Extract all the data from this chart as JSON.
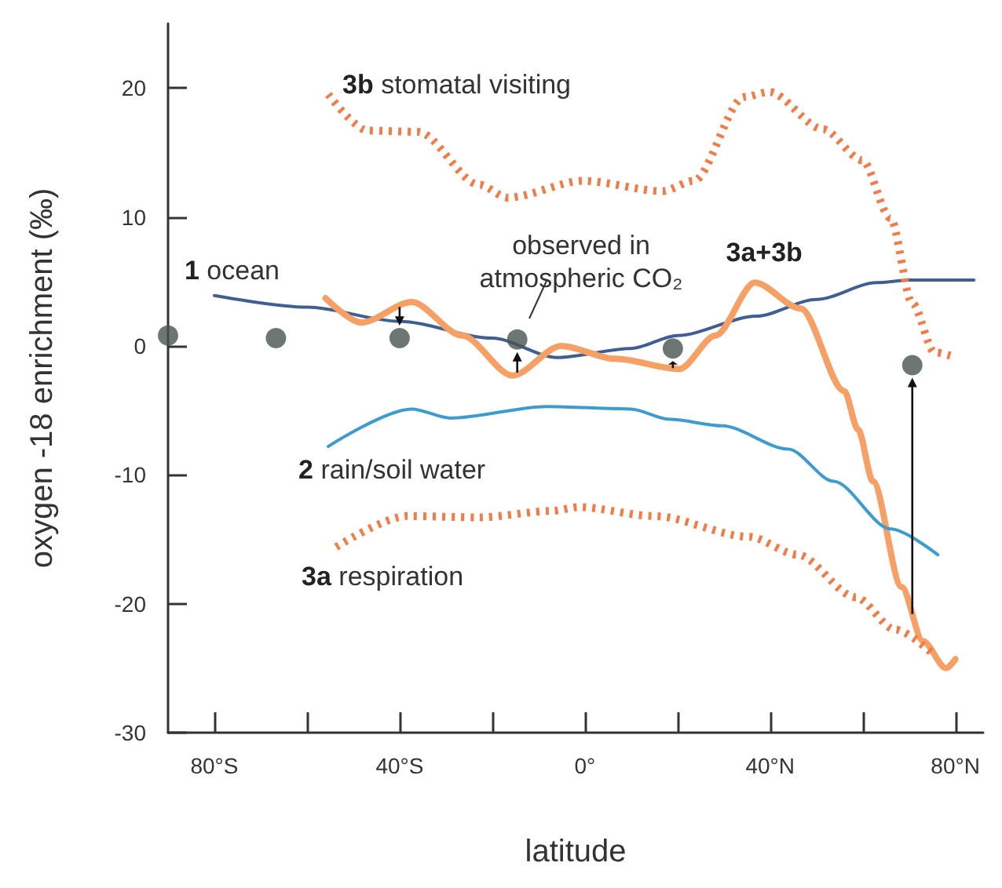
{
  "chart_data": {
    "type": "line",
    "xlabel": "latitude",
    "ylabel": "oxygen -18 enrichment (‰)",
    "xlim": [
      -90,
      86
    ],
    "ylim": [
      -30,
      25
    ],
    "xticks": [
      {
        "value": -80,
        "label": "80°S"
      },
      {
        "value": -60,
        "label": null
      },
      {
        "value": -40,
        "label": "40°S"
      },
      {
        "value": -20,
        "label": null
      },
      {
        "value": 0,
        "label": "0°"
      },
      {
        "value": 20,
        "label": null
      },
      {
        "value": 40,
        "label": "40°N"
      },
      {
        "value": 60,
        "label": null
      },
      {
        "value": 80,
        "label": "80°N"
      }
    ],
    "yticks": [
      -30,
      -20,
      -10,
      0,
      10,
      20
    ],
    "grid": false,
    "legend": false,
    "series": [
      {
        "name": "1 ocean",
        "color": "#3f5f93",
        "line_style": "solid",
        "marker": "none",
        "x": [
          -80,
          -60,
          -40,
          -20,
          -6,
          10,
          20,
          37,
          50,
          63,
          70,
          84
        ],
        "values": [
          3.9,
          3.0,
          1.9,
          0.6,
          -0.9,
          -0.2,
          0.8,
          2.3,
          3.6,
          4.9,
          5.1,
          5.1
        ]
      },
      {
        "name": "3a+3b",
        "color": "#f6a066",
        "line_style": "solid",
        "marker": "none",
        "x": [
          -56,
          -48.3,
          -37.4,
          -26.5,
          -15.6,
          -5.1,
          6.5,
          20.4,
          28.2,
          36.7,
          46.6,
          56,
          59,
          62.2,
          68.4,
          73,
          78,
          80
        ],
        "values": [
          3.7,
          1.8,
          3.4,
          0.8,
          -2.3,
          0,
          -1.0,
          -1.8,
          0.8,
          4.9,
          2.9,
          -3.5,
          -6.5,
          -10.5,
          -18.7,
          -22.9,
          -25,
          -24.3
        ]
      },
      {
        "name": "2 rain/soil water",
        "color": "#3d9bd1",
        "line_style": "solid",
        "marker": "none",
        "x": [
          -55.4,
          -37.4,
          -29,
          -8.2,
          9.9,
          18.4,
          29.6,
          43.9,
          53.7,
          66,
          76.2
        ],
        "values": [
          -7.8,
          -4.9,
          -5.6,
          -4.7,
          -4.9,
          -5.7,
          -6.2,
          -8.0,
          -10.5,
          -14.2,
          -16.2
        ]
      },
      {
        "name": "3a respiration",
        "color": "#f27c48",
        "line_style": "dotted",
        "marker": "none",
        "x": [
          -53.7,
          -38.4,
          -22.8,
          -7.1,
          -1.4,
          15,
          35.4,
          45.9,
          58.5,
          67,
          75.5
        ],
        "values": [
          -15.6,
          -13.2,
          -13.3,
          -12.8,
          -12.5,
          -13.2,
          -14.8,
          -16.2,
          -19.5,
          -22,
          -24
        ]
      },
      {
        "name": "3b stomatal visiting",
        "color": "#f27c48",
        "line_style": "dotted",
        "marker": "none",
        "x": [
          -55.4,
          -46.9,
          -36,
          -22.8,
          -16.7,
          -0.3,
          16.7,
          23.5,
          34.4,
          39.8,
          51.4,
          59.9,
          66,
          70.7,
          75.5,
          79.3
        ],
        "values": [
          19.5,
          16.7,
          16.6,
          12.5,
          11.5,
          12.8,
          12.0,
          12.8,
          19.3,
          19.7,
          16.8,
          14.4,
          9.9,
          3.3,
          -0.5,
          -0.8
        ]
      },
      {
        "type": "scatter",
        "color": "#4a5450",
        "marker": "circle",
        "x": [
          -90,
          -66.7,
          -40,
          -14.6,
          19,
          70.7
        ],
        "values": [
          0.8,
          0.6,
          0.6,
          0.5,
          -0.2,
          -1.5
        ]
      }
    ],
    "annotations": [
      "observed in\natmospheric CO₂"
    ]
  }
}
